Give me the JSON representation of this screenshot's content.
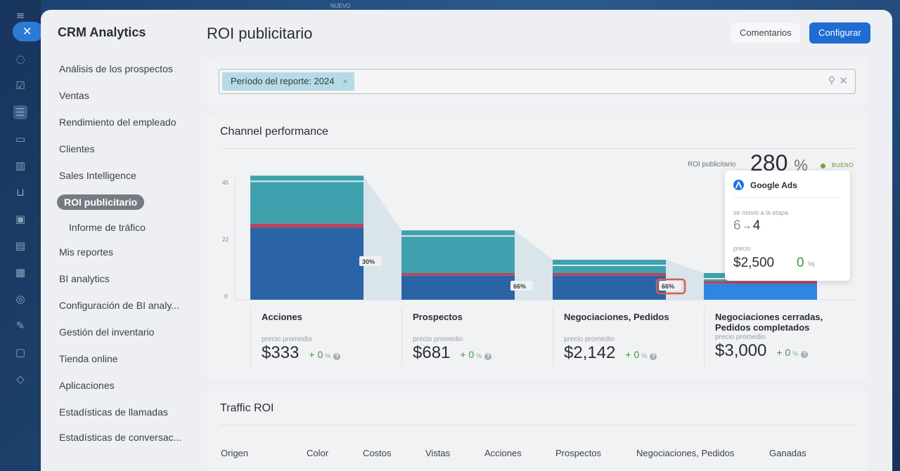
{
  "background": {
    "top_text": "NUEVO"
  },
  "rail": {
    "close_glyph": "✕",
    "icons": [
      "chat-icon",
      "tasks-icon",
      "crm-icon",
      "inbox-icon",
      "analytics-icon",
      "cart-icon",
      "ticket-icon",
      "calendar-icon",
      "drive-icon",
      "settings-icon",
      "sign-icon",
      "doc-icon",
      "more-icon"
    ]
  },
  "sidebar": {
    "title": "CRM Analytics",
    "items": [
      {
        "label": "Análisis de los prospectos"
      },
      {
        "label": "Ventas"
      },
      {
        "label": "Rendimiento del empleado"
      },
      {
        "label": "Clientes"
      },
      {
        "label": "Sales Intelligence"
      },
      {
        "label": "ROI publicitario",
        "active": true
      },
      {
        "label": "Informe de tráfico",
        "sub": true
      },
      {
        "label": "Mis reportes"
      },
      {
        "label": "BI analytics"
      },
      {
        "label": "Configuración de BI analy..."
      },
      {
        "label": "Gestión del inventario"
      },
      {
        "label": "Tienda online"
      },
      {
        "label": "Aplicaciones"
      },
      {
        "label": "Estadísticas de llamadas"
      },
      {
        "label": "Estadísticas de conversac..."
      }
    ]
  },
  "header": {
    "title": "ROI publicitario",
    "comments_label": "Comentarios",
    "configure_label": "Configurar"
  },
  "filter": {
    "chip_label": "Período del reporte: 2024",
    "chip_close": "×",
    "search_glyph": "⚲",
    "clear_glyph": "✕"
  },
  "channel": {
    "title": "Channel performance",
    "roi_label": "ROI publicitario",
    "roi_value": "280",
    "roi_unit": "%",
    "roi_status": "BUENO",
    "y_ticks": [
      "45",
      "22",
      "0"
    ],
    "conversion_badges": [
      "30%",
      "66%",
      "66%"
    ],
    "stages": [
      {
        "name": "Acciones",
        "price_label": "precio promedio",
        "price": "$333",
        "change": "+ 0",
        "pct": "%"
      },
      {
        "name": "Prospectos",
        "price_label": "precio promedio",
        "price": "$681",
        "change": "+ 0",
        "pct": "%"
      },
      {
        "name": "Negociaciones, Pedidos",
        "price_label": "precio promedio",
        "price": "$2,142",
        "change": "+ 0",
        "pct": "%"
      },
      {
        "name": "Negociaciones cerradas, Pedidos completados",
        "price_label": "precio promedio",
        "price": "$3,000",
        "change": "+ 0",
        "pct": "%"
      }
    ],
    "colors": {
      "blue": "#2a64a6",
      "teal": "#3fa1ad",
      "red": "#b6455e",
      "highlight": "#2f86e0",
      "flow": "#c9dbe5"
    }
  },
  "chart_data": {
    "type": "bar",
    "categories": [
      "Acciones",
      "Prospectos",
      "Negociaciones, Pedidos",
      "Negociaciones cerradas, Pedidos completados"
    ],
    "series": [
      {
        "values": [
          27,
          9,
          9,
          6
        ]
      },
      {
        "values": [
          1.5,
          1,
          1,
          1
        ]
      },
      {
        "values": [
          18,
          16,
          5,
          3
        ]
      }
    ],
    "conversion": [
      "30%",
      "66%",
      "66%"
    ],
    "ylim": [
      0,
      45
    ],
    "yticks": [
      0,
      22,
      45
    ]
  },
  "tooltip": {
    "title": "Google Ads",
    "moved_label": "se movió a la etapa",
    "from": "6",
    "arrow": "→",
    "to": "4",
    "price_label": "precio",
    "price": "$2,500",
    "change": "0",
    "pct": "%"
  },
  "traffic": {
    "title": "Traffic ROI",
    "columns": [
      "Origen",
      "Color",
      "Costos",
      "Vistas",
      "Acciones",
      "Prospectos",
      "Negociaciones, Pedidos",
      "Ganadas"
    ]
  }
}
